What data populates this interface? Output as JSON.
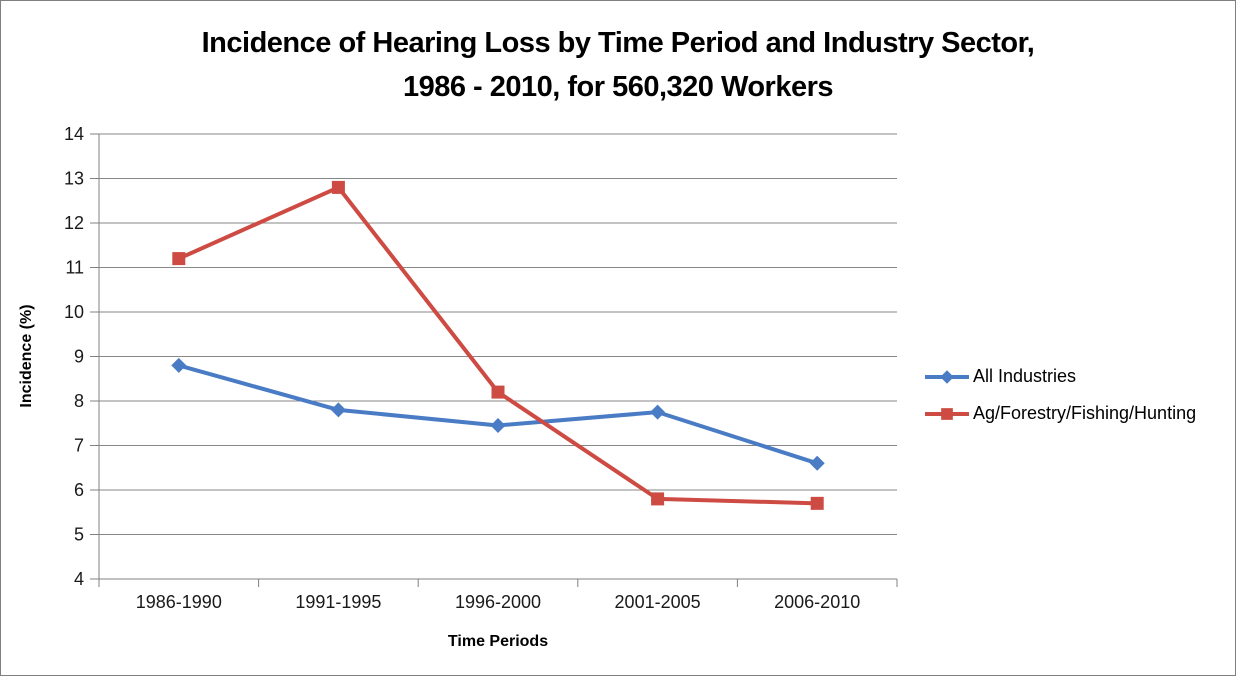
{
  "window": {
    "background": "#ffffff",
    "border_color": "#7f7f7f"
  },
  "chart_data": {
    "type": "line",
    "title_line1": "Incidence of Hearing Loss by Time Period and Industry Sector,",
    "title_line2": "1986 - 2010, for 560,320 Workers",
    "xlabel": "Time Periods",
    "ylabel": "Incidence (%)",
    "categories": [
      "1986-1990",
      "1991-1995",
      "1996-2000",
      "2001-2005",
      "2006-2010"
    ],
    "series": [
      {
        "name": "All Industries",
        "marker": "diamond",
        "color": "#4a7cc5",
        "values": [
          8.8,
          7.8,
          7.45,
          7.75,
          6.6
        ]
      },
      {
        "name": "Ag/Forestry/Fishing/Hunting",
        "marker": "square",
        "color": "#cd4b42",
        "values": [
          11.2,
          12.8,
          8.2,
          5.8,
          5.7
        ]
      }
    ],
    "ylim": [
      4,
      14
    ],
    "ytick_step": 1,
    "grid": true,
    "legend_position": "right",
    "gridline_color": "#878787",
    "axis_color": "#808080",
    "tick_label_color": "#1a1a1a"
  }
}
